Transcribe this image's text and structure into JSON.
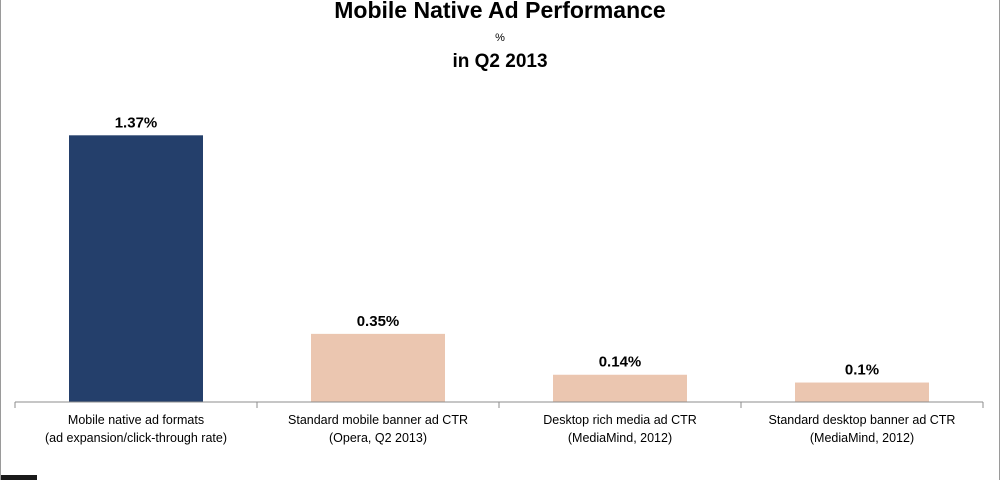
{
  "chart_data": {
    "type": "bar",
    "title": "Mobile Native Ad Performance",
    "subtitle": "%",
    "subtitle2": "in Q2 2013",
    "categories": [
      [
        "Mobile native ad formats",
        "(ad expansion/click-through rate)"
      ],
      [
        "Standard mobile banner ad CTR",
        "(Opera, Q2 2013)"
      ],
      [
        "Desktop rich media ad CTR",
        "(MediaMind, 2012)"
      ],
      [
        "Standard desktop banner ad CTR",
        "(MediaMind, 2012)"
      ]
    ],
    "values": [
      1.37,
      0.35,
      0.14,
      0.1
    ],
    "data_labels": [
      "1.37%",
      "0.35%",
      "0.14%",
      "0.1%"
    ],
    "colors": [
      "#243f6b",
      "#ebc6b0",
      "#ebc6b0",
      "#ebc6b0"
    ],
    "ylim": [
      0,
      1.5
    ],
    "grid": false,
    "legend": "none"
  }
}
